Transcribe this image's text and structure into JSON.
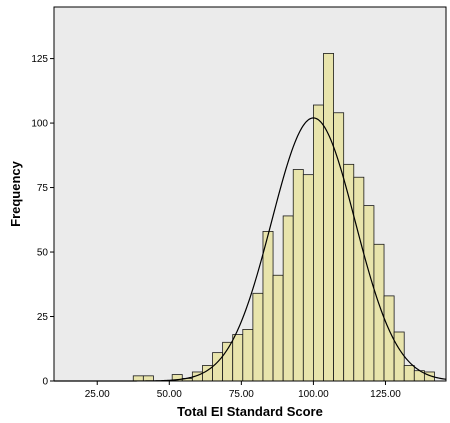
{
  "chart_data": {
    "type": "bar",
    "title": "",
    "xlabel": "Total EI Standard Score",
    "ylabel": "Frequency",
    "xlim": [
      10,
      146
    ],
    "ylim": [
      0,
      145
    ],
    "bin_width": 3.5,
    "x_ticks": [
      {
        "value": 25,
        "label": "25.00"
      },
      {
        "value": 50,
        "label": "50.00"
      },
      {
        "value": 75,
        "label": "75.00"
      },
      {
        "value": 100,
        "label": "100.00"
      },
      {
        "value": 125,
        "label": "125.00"
      }
    ],
    "y_ticks": [
      {
        "value": 0,
        "label": "0"
      },
      {
        "value": 25,
        "label": "25"
      },
      {
        "value": 50,
        "label": "50"
      },
      {
        "value": 75,
        "label": "75"
      },
      {
        "value": 100,
        "label": "100"
      },
      {
        "value": 125,
        "label": "125"
      }
    ],
    "bins": [
      {
        "start": 37.5,
        "value": 2
      },
      {
        "start": 41.0,
        "value": 2
      },
      {
        "start": 51.0,
        "value": 2.5
      },
      {
        "start": 54.5,
        "value": 1
      },
      {
        "start": 58.0,
        "value": 3.5
      },
      {
        "start": 61.5,
        "value": 6
      },
      {
        "start": 65.0,
        "value": 11
      },
      {
        "start": 68.5,
        "value": 15
      },
      {
        "start": 72.0,
        "value": 18
      },
      {
        "start": 75.5,
        "value": 20
      },
      {
        "start": 79.0,
        "value": 34
      },
      {
        "start": 82.5,
        "value": 58
      },
      {
        "start": 86.0,
        "value": 41
      },
      {
        "start": 89.5,
        "value": 64
      },
      {
        "start": 93.0,
        "value": 82
      },
      {
        "start": 96.5,
        "value": 80
      },
      {
        "start": 100.0,
        "value": 107
      },
      {
        "start": 103.5,
        "value": 127
      },
      {
        "start": 107.0,
        "value": 104
      },
      {
        "start": 110.5,
        "value": 84
      },
      {
        "start": 114.0,
        "value": 79
      },
      {
        "start": 117.5,
        "value": 68
      },
      {
        "start": 121.0,
        "value": 53
      },
      {
        "start": 124.5,
        "value": 33
      },
      {
        "start": 128.0,
        "value": 19
      },
      {
        "start": 131.5,
        "value": 6
      },
      {
        "start": 135.0,
        "value": 4
      },
      {
        "start": 138.5,
        "value": 3.5
      }
    ],
    "normal_curve": {
      "mean": 100,
      "sd": 14.5,
      "peak": 102
    },
    "colors": {
      "bar_fill": "#e8e4ac",
      "bar_stroke": "#1a1a1a",
      "plot_bg": "#ebebeb",
      "curve": "#000000"
    }
  }
}
